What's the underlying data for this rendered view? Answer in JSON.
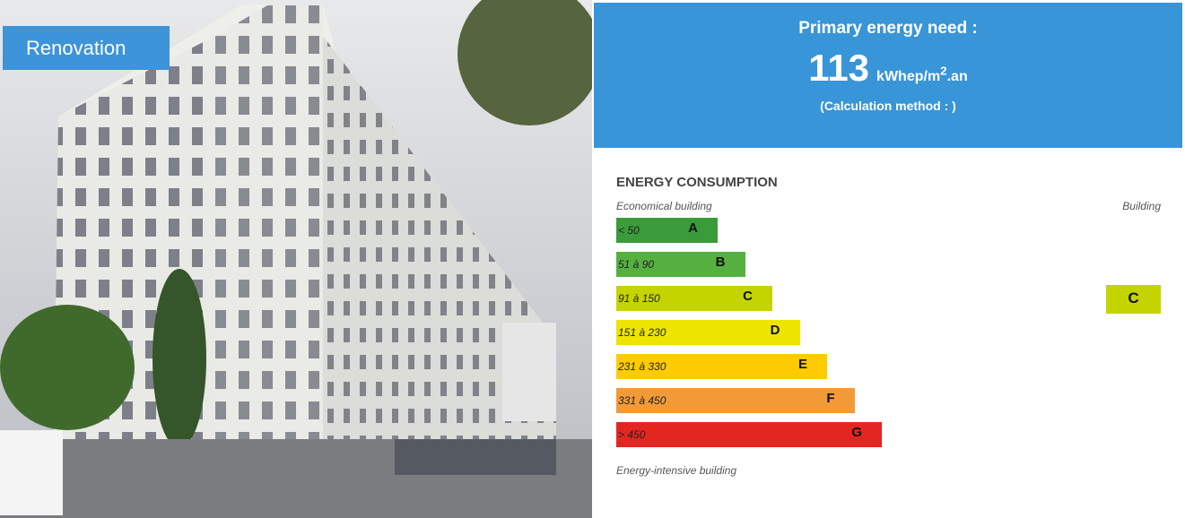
{
  "badge": "Renovation",
  "header": {
    "title": "Primary energy need :",
    "value": "113",
    "unit_main": "kWhep/m",
    "unit_sup": "2",
    "unit_end": ".an",
    "method": "(Calculation method : )"
  },
  "section": {
    "title": "ENERGY CONSUMPTION",
    "left_caption": "Economical building",
    "right_caption": "Building",
    "bottom_caption": "Energy-intensive building"
  },
  "classes": [
    {
      "range": "< 50",
      "letter": "A",
      "color": "#3a9b3a"
    },
    {
      "range": "51 à 90",
      "letter": "B",
      "color": "#56b040"
    },
    {
      "range": "91 à 150",
      "letter": "C",
      "color": "#c3d400"
    },
    {
      "range": "151 à 230",
      "letter": "D",
      "color": "#ede500"
    },
    {
      "range": "231 à 330",
      "letter": "E",
      "color": "#fdcb00"
    },
    {
      "range": "331 à 450",
      "letter": "F",
      "color": "#f29a37"
    },
    {
      "range": "> 450",
      "letter": "G",
      "color": "#e3261f"
    }
  ],
  "current": {
    "letter": "C",
    "color": "#c3d400"
  }
}
